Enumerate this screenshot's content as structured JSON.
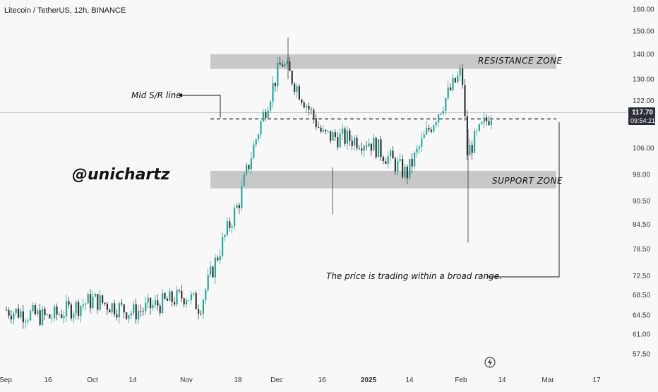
{
  "header": {
    "title": "Litecoin / TetherUS, 12h, BINANCE"
  },
  "watermark": "@unichartz",
  "current_price": {
    "price": "117.70",
    "countdown": "09:54:21"
  },
  "annotations": {
    "mid_line": "Mid S/R line",
    "resistance": "RESISTANCE  ZONE",
    "support": "SUPPORT  ZONE",
    "range_note": "The price is trading within a broad range."
  },
  "colors": {
    "up": "#26a69a",
    "down": "#333333",
    "zone": "#c8c8c8",
    "price_tag": "#2a2e39",
    "background": "#f8f8f8"
  },
  "chart_data": {
    "type": "candlestick",
    "title": "Litecoin / TetherUS, 12h, BINANCE",
    "x_axis": {
      "ticks": [
        "Sep",
        "16",
        "Oct",
        "14",
        "Nov",
        "18",
        "Dec",
        "16",
        "2025",
        "14",
        "Feb",
        "14",
        "Mar",
        "17"
      ],
      "bold_ticks": [
        "2025"
      ]
    },
    "y_axis": {
      "scale": "log",
      "range": [
        54.5,
        165
      ],
      "ticks": [
        "160.00",
        "150.00",
        "140.00",
        "130.00",
        "122.00",
        "106.00",
        "98.00",
        "90.50",
        "84.50",
        "78.50",
        "72.50",
        "68.50",
        "64.50",
        "61.00",
        "57.50"
      ],
      "position": "right"
    },
    "zones": [
      {
        "name": "RESISTANCE  ZONE",
        "low": 134,
        "high": 140
      },
      {
        "name": "SUPPORT  ZONE",
        "low": 94,
        "high": 99
      }
    ],
    "mid_line": 115.5,
    "current_price_line": 117.7,
    "series_segments": [
      [
        [
          "Sep",
          65.5
        ],
        [
          "16",
          64
        ],
        [
          "Oct",
          67.5
        ],
        [
          "14",
          65
        ],
        [
          "Nov",
          68.5
        ],
        [
          "Nov",
          66
        ]
      ],
      [
        [
          "Nov",
          66
        ],
        [
          "18",
          90
        ],
        [
          "Dec",
          137
        ]
      ],
      [
        [
          "Dec",
          137
        ],
        [
          "16",
          110
        ],
        [
          "2025",
          108
        ],
        [
          "14",
          98
        ]
      ],
      [
        [
          "14",
          98
        ],
        [
          "Feb",
          133
        ],
        [
          "Feb",
          104
        ],
        [
          "14",
          117.7
        ]
      ]
    ],
    "extremes": {
      "high": 147,
      "low": 80
    }
  }
}
